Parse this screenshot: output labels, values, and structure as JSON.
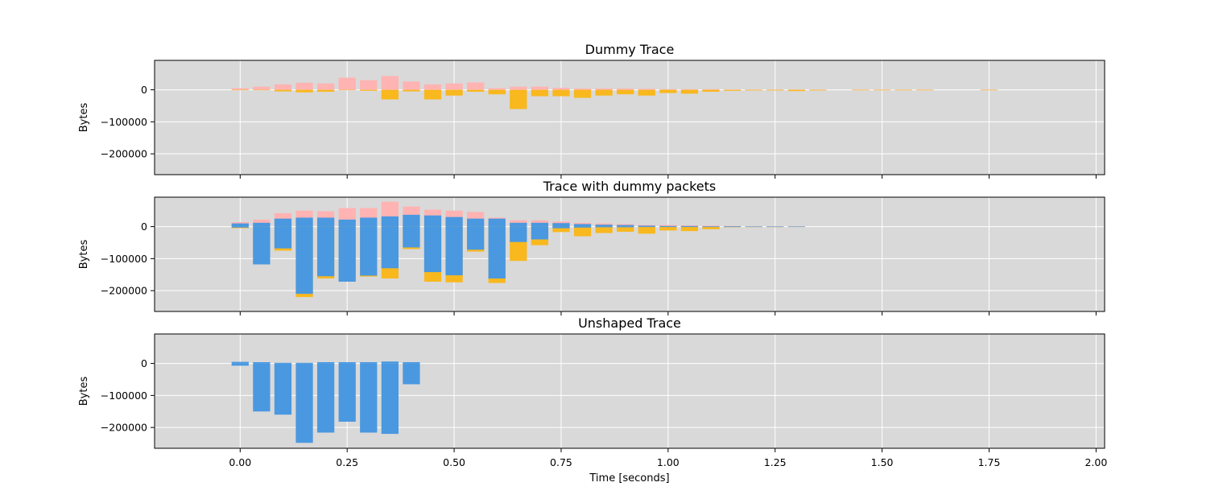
{
  "chart_data": {
    "type": "bar",
    "xlabel": "Time [seconds]",
    "ylabel": "Bytes",
    "xlim": [
      -0.2,
      2.02
    ],
    "ylim": [
      -265000,
      92000
    ],
    "x_ticks": [
      "0.00",
      "0.25",
      "0.50",
      "0.75",
      "1.00",
      "1.25",
      "1.50",
      "1.75",
      "2.00"
    ],
    "y_ticks": [
      "0",
      "−100000",
      "−200000"
    ],
    "bin_width": 0.04,
    "grid": true,
    "colors": {
      "background": "#d9d9d9",
      "real_out": "#4a98e0",
      "real_in": "#4a98e0",
      "dummy_out": "#ffb3b3",
      "dummy_in": "#f8b81e",
      "grid": "#ffffff"
    },
    "panels": [
      {
        "title": "Dummy Trace",
        "layers": [
          {
            "role": "dummy_out",
            "x": [
              0.0,
              0.05,
              0.1,
              0.15,
              0.2,
              0.25,
              0.3,
              0.35,
              0.4,
              0.45,
              0.5,
              0.55,
              0.6,
              0.65,
              0.7,
              0.75,
              0.8,
              0.85,
              0.9,
              0.95,
              1.0,
              1.05,
              1.1,
              1.15,
              1.2,
              1.25,
              1.3,
              1.35,
              1.45,
              1.5,
              1.55,
              1.6,
              1.75
            ],
            "values": [
              5000,
              10000,
              17000,
              22000,
              20000,
              38000,
              30000,
              43000,
              26000,
              17000,
              20000,
              23000,
              5000,
              10000,
              10000,
              6000,
              4000,
              4000,
              4000,
              3000,
              2000,
              2000,
              2000,
              1000,
              1000,
              1000,
              1000,
              1000,
              1000,
              1000,
              1000,
              1000,
              1000
            ]
          },
          {
            "role": "dummy_in",
            "x": [
              0.0,
              0.05,
              0.1,
              0.15,
              0.2,
              0.25,
              0.3,
              0.35,
              0.4,
              0.45,
              0.5,
              0.55,
              0.6,
              0.65,
              0.7,
              0.75,
              0.8,
              0.85,
              0.9,
              0.95,
              1.0,
              1.05,
              1.1,
              1.15,
              1.2,
              1.25,
              1.3,
              1.35,
              1.45,
              1.5,
              1.55,
              1.6,
              1.75
            ],
            "values": [
              -1000,
              -1000,
              -5000,
              -8000,
              -6000,
              -1000,
              -3000,
              -30000,
              -5000,
              -30000,
              -18000,
              -6000,
              -14000,
              -60000,
              -20000,
              -20000,
              -25000,
              -18000,
              -14000,
              -18000,
              -10000,
              -12000,
              -6000,
              -3000,
              -2000,
              -2000,
              -4000,
              -2000,
              -1500,
              -1500,
              -1500,
              -1500,
              -1500
            ]
          }
        ]
      },
      {
        "title": "Trace with dummy packets",
        "layers": [
          {
            "role": "dummy_out",
            "x": [
              0.0,
              0.05,
              0.1,
              0.15,
              0.2,
              0.25,
              0.3,
              0.35,
              0.4,
              0.45,
              0.5,
              0.55,
              0.6,
              0.65,
              0.7,
              0.75,
              0.8,
              0.85,
              0.9,
              0.95,
              1.0,
              1.05,
              1.1,
              1.15,
              1.2,
              1.25,
              1.3
            ],
            "values": [
              14000,
              22000,
              42000,
              50000,
              48000,
              58000,
              58000,
              78000,
              63000,
              53000,
              50000,
              46000,
              28000,
              20000,
              20000,
              16000,
              12000,
              10000,
              8000,
              5000,
              5000,
              4000,
              3000,
              2000,
              1000,
              1000,
              1000
            ]
          },
          {
            "role": "real_out",
            "x": [
              0.0,
              0.05,
              0.1,
              0.15,
              0.2,
              0.25,
              0.3,
              0.35,
              0.4,
              0.45,
              0.5,
              0.55,
              0.6,
              0.65,
              0.7,
              0.75,
              0.8,
              0.85,
              0.9,
              0.95,
              1.0,
              1.05,
              1.1,
              1.15,
              1.2,
              1.25,
              1.3
            ],
            "values": [
              10000,
              12000,
              25000,
              28000,
              28000,
              22000,
              28000,
              32000,
              37000,
              35000,
              30000,
              25000,
              25000,
              12000,
              12000,
              11000,
              8000,
              6000,
              5000,
              3000,
              2000,
              2000,
              1000,
              1000,
              500,
              500,
              500
            ]
          },
          {
            "role": "dummy_in",
            "x": [
              0.0,
              0.05,
              0.1,
              0.15,
              0.2,
              0.25,
              0.3,
              0.35,
              0.4,
              0.45,
              0.5,
              0.55,
              0.6,
              0.65,
              0.7,
              0.75,
              0.8,
              0.85,
              0.9,
              0.95,
              1.0,
              1.05,
              1.1,
              1.15,
              1.2,
              1.25,
              1.3
            ],
            "values": [
              -5000,
              -118000,
              -75000,
              -220000,
              -162000,
              -172000,
              -156000,
              -162000,
              -70000,
              -172000,
              -174000,
              -78000,
              -176000,
              -107000,
              -58000,
              -17000,
              -30000,
              -20000,
              -16000,
              -22000,
              -12000,
              -14000,
              -8000,
              -2000,
              -1500,
              -1500,
              -1000
            ]
          },
          {
            "role": "real_in",
            "x": [
              0.0,
              0.05,
              0.1,
              0.15,
              0.2,
              0.25,
              0.3,
              0.35,
              0.4,
              0.45,
              0.5,
              0.55,
              0.6,
              0.65,
              0.7,
              0.75,
              0.8,
              0.85,
              0.9,
              0.95,
              1.0,
              1.05,
              1.1,
              1.15,
              1.2,
              1.25,
              1.3
            ],
            "values": [
              -3000,
              -118000,
              -68000,
              -210000,
              -155000,
              -172000,
              -153000,
              -130000,
              -65000,
              -142000,
              -152000,
              -72000,
              -162000,
              -48000,
              -40000,
              -5000,
              -3000,
              -2000,
              -2000,
              -1000,
              -1000,
              -500,
              -500,
              -500,
              -500,
              -500,
              -500
            ]
          }
        ]
      },
      {
        "title": "Unshaped Trace",
        "layers": [
          {
            "role": "real_out",
            "x": [
              0.0,
              0.05,
              0.1,
              0.15,
              0.2,
              0.25,
              0.3,
              0.35,
              0.4
            ],
            "values": [
              5000,
              4000,
              2000,
              2000,
              4000,
              4000,
              4000,
              6000,
              4000
            ]
          },
          {
            "role": "real_in",
            "x": [
              0.0,
              0.05,
              0.1,
              0.15,
              0.2,
              0.25,
              0.3,
              0.35,
              0.4
            ],
            "values": [
              -7000,
              -150000,
              -160000,
              -248000,
              -216000,
              -182000,
              -216000,
              -220000,
              -65000
            ]
          }
        ]
      }
    ]
  }
}
